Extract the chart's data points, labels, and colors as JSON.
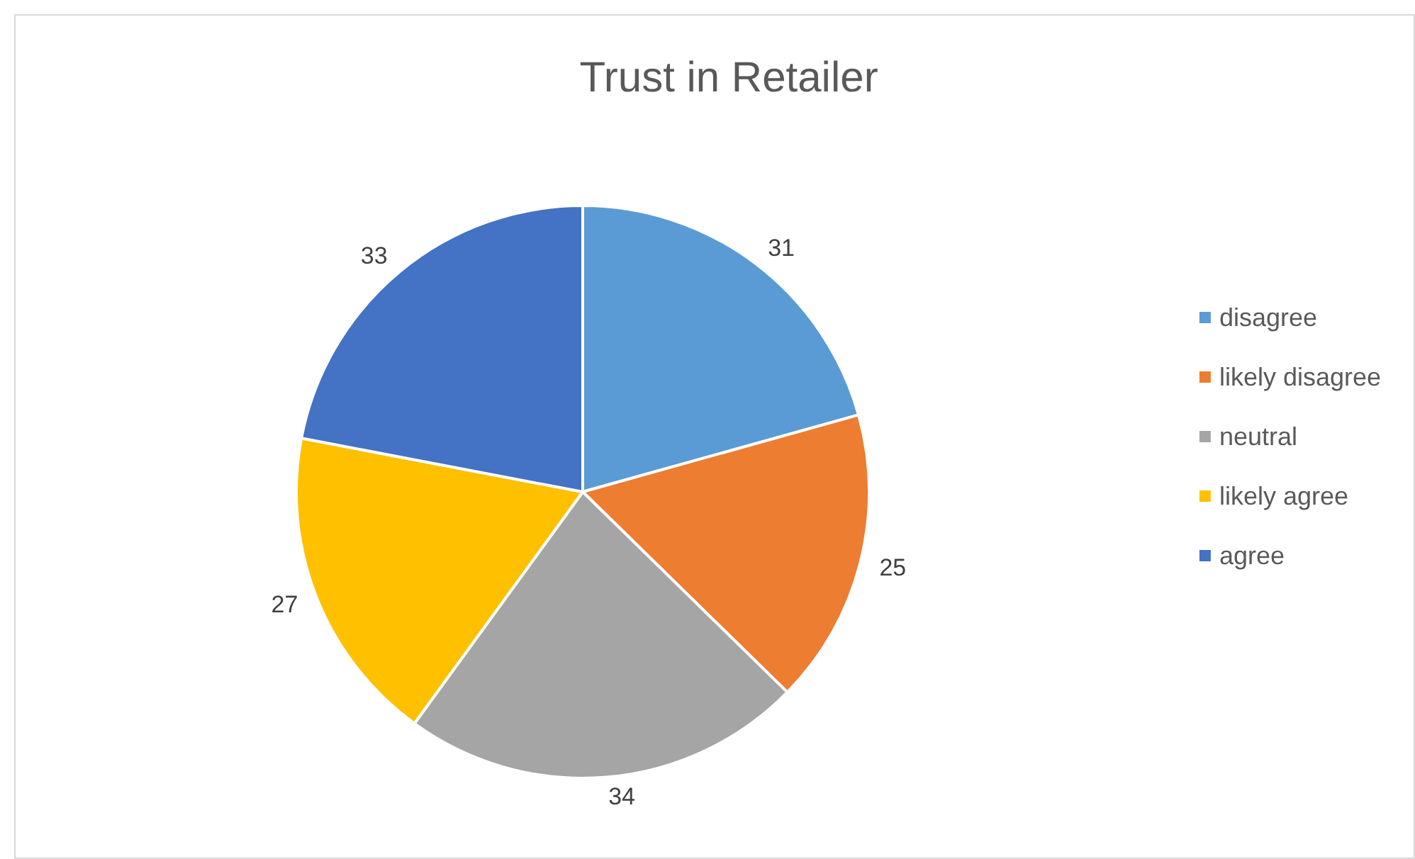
{
  "chart_data": {
    "type": "pie",
    "title": "Trust in Retailer",
    "categories": [
      "disagree",
      "likely disagree",
      "neutral",
      "likely agree",
      "agree"
    ],
    "values": [
      31,
      25,
      34,
      27,
      33
    ],
    "colors": [
      "#5b9bd5",
      "#ed7d31",
      "#a5a5a5",
      "#ffc000",
      "#4472c4"
    ],
    "data_labels": true,
    "legend": "right"
  }
}
